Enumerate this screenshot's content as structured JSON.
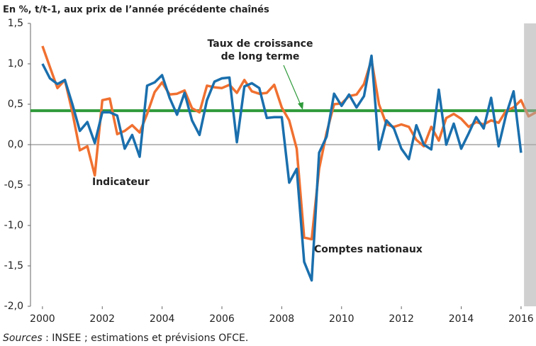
{
  "chart_data": {
    "type": "line",
    "title": "En %, t/t-1, aux prix de l’année précédente chaînés",
    "source_label": "Sources",
    "source_text": ": INSEE ; estimations et prévisions OFCE.",
    "x": [
      2000,
      2000.25,
      2000.5,
      2000.75,
      2001,
      2001.25,
      2001.5,
      2001.75,
      2002,
      2002.25,
      2002.5,
      2002.75,
      2003,
      2003.25,
      2003.5,
      2003.75,
      2004,
      2004.25,
      2004.5,
      2004.75,
      2005,
      2005.25,
      2005.5,
      2005.75,
      2006,
      2006.25,
      2006.5,
      2006.75,
      2007,
      2007.25,
      2007.5,
      2007.75,
      2008,
      2008.25,
      2008.5,
      2008.75,
      2009,
      2009.25,
      2009.5,
      2009.75,
      2010,
      2010.25,
      2010.5,
      2010.75,
      2011,
      2011.25,
      2011.5,
      2011.75,
      2012,
      2012.25,
      2012.5,
      2012.75,
      2013,
      2013.25,
      2013.5,
      2013.75,
      2014,
      2014.25,
      2014.5,
      2014.75,
      2015,
      2015.25,
      2015.5,
      2015.75,
      2016,
      2016.25,
      2016.5
    ],
    "series": [
      {
        "name": "Indicateur",
        "color": "#f07030",
        "values": [
          1.22,
          0.96,
          0.7,
          0.8,
          0.4,
          -0.07,
          -0.02,
          -0.38,
          0.55,
          0.57,
          0.13,
          0.17,
          0.24,
          0.15,
          0.38,
          0.65,
          0.77,
          0.62,
          0.63,
          0.67,
          0.45,
          0.4,
          0.73,
          0.71,
          0.7,
          0.74,
          0.64,
          0.8,
          0.66,
          0.63,
          0.64,
          0.74,
          0.46,
          0.3,
          -0.05,
          -1.15,
          -1.17,
          -0.3,
          0.15,
          0.5,
          0.51,
          0.6,
          0.62,
          0.75,
          1.05,
          0.5,
          0.25,
          0.22,
          0.25,
          0.22,
          0.06,
          -0.02,
          0.22,
          0.05,
          0.33,
          0.38,
          0.32,
          0.22,
          0.28,
          0.25,
          0.3,
          0.27,
          0.42,
          0.46,
          0.55,
          0.35,
          0.4
        ]
      },
      {
        "name": "Comptes nationaux",
        "color": "#1a6fad",
        "values": [
          1.0,
          0.82,
          0.75,
          0.8,
          0.5,
          0.17,
          0.28,
          0.02,
          0.4,
          0.4,
          0.36,
          -0.05,
          0.12,
          -0.15,
          0.73,
          0.77,
          0.86,
          0.58,
          0.37,
          0.64,
          0.3,
          0.12,
          0.55,
          0.78,
          0.82,
          0.83,
          0.03,
          0.72,
          0.76,
          0.7,
          0.33,
          0.34,
          0.34,
          -0.47,
          -0.3,
          -1.45,
          -1.68,
          -0.1,
          0.1,
          0.63,
          0.48,
          0.62,
          0.46,
          0.6,
          1.1,
          -0.06,
          0.3,
          0.2,
          -0.05,
          -0.18,
          0.24,
          0,
          -0.06,
          0.68,
          0,
          0.26,
          -0.05,
          0.14,
          0.34,
          0.2,
          0.58,
          -0.02,
          0.37,
          0.66,
          -0.1,
          null,
          null
        ]
      }
    ],
    "reference_line": {
      "label_line1": "Taux de croissance",
      "label_line2": "de long terme",
      "value": 0.42,
      "color": "#2e9a3a"
    },
    "forecast_from": 2016.1,
    "xlim": [
      1999.6,
      2016.5
    ],
    "ylim": [
      -2,
      1.5
    ],
    "xticks": [
      2000,
      2002,
      2004,
      2006,
      2008,
      2010,
      2012,
      2014,
      2016
    ],
    "yticks": [
      {
        "value": -2,
        "label": "-2,0"
      },
      {
        "value": -1.5,
        "label": "-1,5"
      },
      {
        "value": -1,
        "label": "-1,0"
      },
      {
        "value": -0.5,
        "label": "-0,5"
      },
      {
        "value": 0,
        "label": "0,0"
      },
      {
        "value": 0.5,
        "label": "0,5"
      },
      {
        "value": 1,
        "label": "1,0"
      },
      {
        "value": 1.5,
        "label": "1,5"
      }
    ]
  }
}
